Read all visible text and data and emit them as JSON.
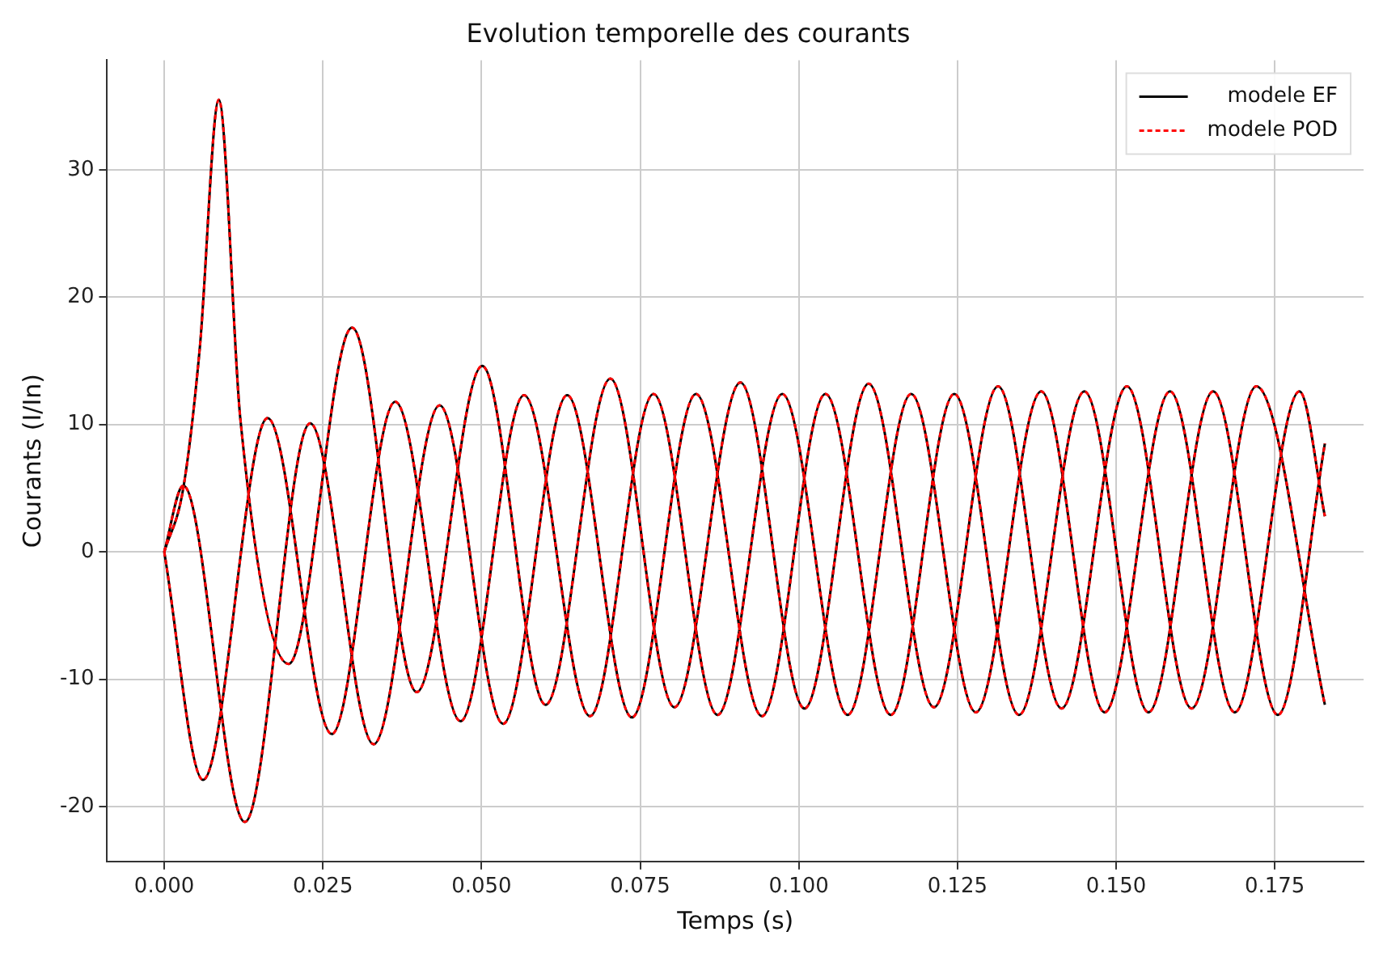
{
  "chart_data": {
    "type": "line",
    "title": "Evolution temporelle des courants",
    "xlabel": "Temps (s)",
    "ylabel": "Courants (I/In)",
    "xlim": [
      -0.009,
      0.189
    ],
    "xticks": [
      {
        "value": 0,
        "label": "0.000"
      },
      {
        "value": 0.025,
        "label": "0.025"
      },
      {
        "value": 0.05,
        "label": "0.050"
      },
      {
        "value": 0.075,
        "label": "0.075"
      },
      {
        "value": 0.1,
        "label": "0.100"
      },
      {
        "value": 0.125,
        "label": "0.125"
      },
      {
        "value": 0.15,
        "label": "0.150"
      },
      {
        "value": 0.175,
        "label": "0.175"
      }
    ],
    "ylim": [
      -24.3,
      38.6
    ],
    "yticks": [
      -20,
      -10,
      0,
      10,
      20,
      30
    ],
    "grid": true,
    "legend": "top right",
    "marker": "none",
    "series": [
      {
        "name": "modele EF",
        "color": "#000000",
        "line_style": "solid",
        "x": [
          0,
          0.003,
          0.0056,
          0.0086,
          0.012,
          0.0196,
          0.0296,
          0.0398,
          0.0501,
          0.0601,
          0.0703,
          0.0804,
          0.0908,
          0.1009,
          0.111,
          0.1213,
          0.1314,
          0.1414,
          0.1517,
          0.1619,
          0.1721,
          0.1829
        ],
        "values": [
          0,
          5,
          16,
          35.5,
          10.4,
          -8.8,
          17.6,
          -11,
          14.6,
          -12,
          13.6,
          -12.2,
          13.3,
          -12.3,
          13.2,
          -12.2,
          13,
          -12.3,
          13,
          -12.3,
          13,
          -12
        ]
      },
      {
        "color": "#000000",
        "line_style": "solid",
        "x": [
          0,
          0.003,
          0.0127,
          0.023,
          0.033,
          0.0434,
          0.0534,
          0.0635,
          0.0737,
          0.0838,
          0.0942,
          0.1042,
          0.1145,
          0.1245,
          0.1347,
          0.145,
          0.1551,
          0.1653,
          0.1755,
          0.1829
        ],
        "values": [
          0,
          5.2,
          -21.2,
          10.1,
          -15.1,
          11.5,
          -13.5,
          12.3,
          -13,
          12.4,
          -12.9,
          12.4,
          -12.8,
          12.4,
          -12.8,
          12.6,
          -12.6,
          12.6,
          -12.8,
          8.5
        ]
      },
      {
        "color": "#000000",
        "line_style": "solid",
        "x": [
          0,
          0.0061,
          0.0163,
          0.0264,
          0.0364,
          0.0467,
          0.0567,
          0.0671,
          0.0771,
          0.0872,
          0.0974,
          0.1077,
          0.1177,
          0.1279,
          0.1382,
          0.1482,
          0.1585,
          0.1687,
          0.1789,
          0.1829
        ],
        "values": [
          0,
          -17.9,
          10.5,
          -14.3,
          11.8,
          -13.3,
          12.3,
          -12.9,
          12.4,
          -12.8,
          12.4,
          -12.8,
          12.4,
          -12.6,
          12.6,
          -12.6,
          12.6,
          -12.6,
          12.6,
          2.8
        ]
      },
      {
        "name": "modele POD",
        "color": "#ff0000",
        "line_style": "dashed",
        "x": [
          0,
          0.003,
          0.0056,
          0.0086,
          0.012,
          0.0196,
          0.0296,
          0.0398,
          0.0501,
          0.0601,
          0.0703,
          0.0804,
          0.0908,
          0.1009,
          0.111,
          0.1213,
          0.1314,
          0.1414,
          0.1517,
          0.1619,
          0.1721,
          0.1829
        ],
        "values": [
          0,
          5,
          16,
          35.5,
          10.4,
          -8.8,
          17.6,
          -11,
          14.6,
          -12,
          13.6,
          -12.2,
          13.3,
          -12.3,
          13.2,
          -12.2,
          13,
          -12.3,
          13,
          -12.3,
          13,
          -12
        ]
      },
      {
        "color": "#ff0000",
        "line_style": "dashed",
        "x": [
          0,
          0.003,
          0.0127,
          0.023,
          0.033,
          0.0434,
          0.0534,
          0.0635,
          0.0737,
          0.0838,
          0.0942,
          0.1042,
          0.1145,
          0.1245,
          0.1347,
          0.145,
          0.1551,
          0.1653,
          0.1755,
          0.1829
        ],
        "values": [
          0,
          5.2,
          -21.2,
          10.1,
          -15.1,
          11.5,
          -13.5,
          12.3,
          -13,
          12.4,
          -12.9,
          12.4,
          -12.8,
          12.4,
          -12.8,
          12.6,
          -12.6,
          12.6,
          -12.8,
          8.5
        ]
      },
      {
        "color": "#ff0000",
        "line_style": "dashed",
        "x": [
          0,
          0.0061,
          0.0163,
          0.0264,
          0.0364,
          0.0467,
          0.0567,
          0.0671,
          0.0771,
          0.0872,
          0.0974,
          0.1077,
          0.1177,
          0.1279,
          0.1382,
          0.1482,
          0.1585,
          0.1687,
          0.1789,
          0.1829
        ],
        "values": [
          0,
          -17.9,
          10.5,
          -14.3,
          11.8,
          -13.3,
          12.3,
          -12.9,
          12.4,
          -12.8,
          12.4,
          -12.8,
          12.4,
          -12.6,
          12.6,
          -12.6,
          12.6,
          -12.6,
          12.6,
          2.8
        ]
      }
    ]
  }
}
